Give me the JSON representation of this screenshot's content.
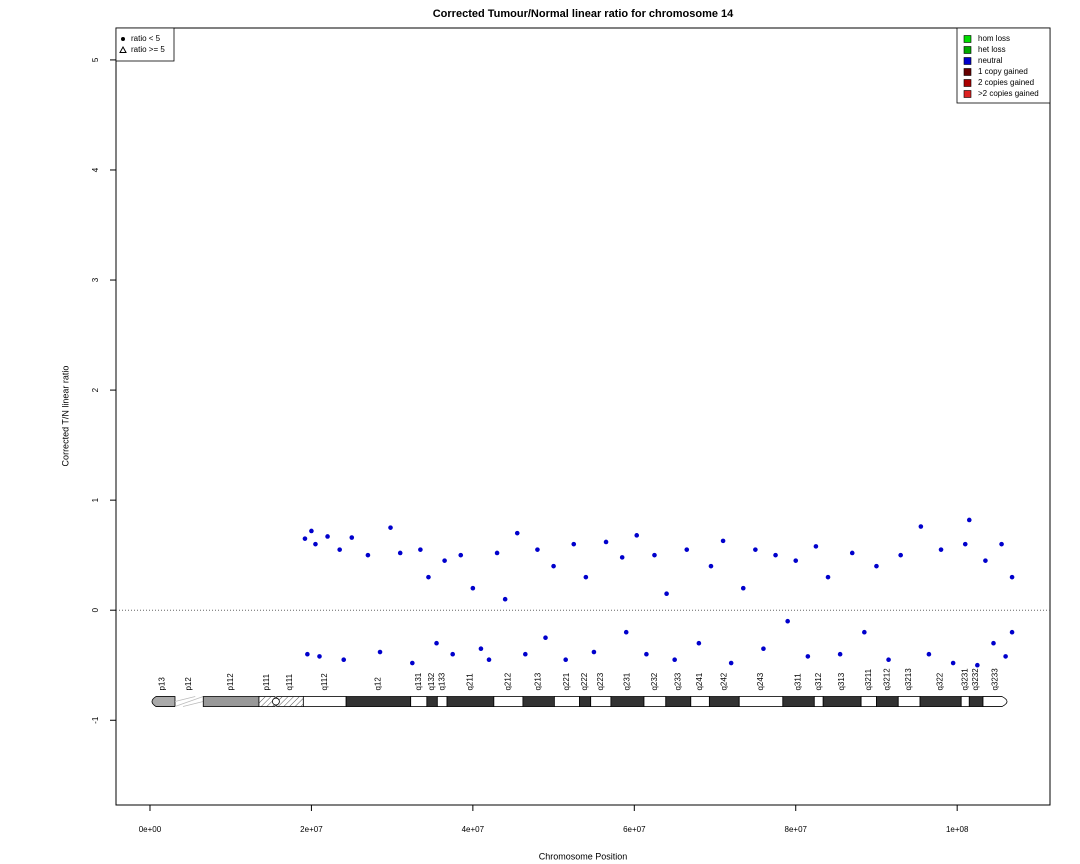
{
  "chart_data": {
    "type": "scatter",
    "title": "Corrected Tumour/Normal linear ratio for chromosome  14",
    "x_label": "Chromosome Position",
    "y_label": "Corrected T/N linear ratio",
    "xlim": [
      -4210000,
      111500000
    ],
    "ylim": [
      -1.77,
      5.29
    ],
    "xticks": [
      {
        "value": 0,
        "label": "0e+00"
      },
      {
        "value": 20000000,
        "label": "2e+07"
      },
      {
        "value": 40000000,
        "label": "4e+07"
      },
      {
        "value": 60000000,
        "label": "6e+07"
      },
      {
        "value": 80000000,
        "label": "8e+07"
      },
      {
        "value": 100000000,
        "label": "1e+08"
      }
    ],
    "yticks": [
      -1,
      0,
      1,
      2,
      3,
      4,
      5
    ],
    "reference_line": 0,
    "shape_legend": [
      "ratio < 5",
      "ratio >= 5"
    ],
    "legend": [
      {
        "name": "hom loss",
        "color": "#00dd00"
      },
      {
        "name": "het loss",
        "color": "#00aa00"
      },
      {
        "name": "neutral",
        "color": "#0000cc"
      },
      {
        "name": "1 copy gained",
        "color": "#660000"
      },
      {
        "name": "2 copies gained",
        "color": "#aa0000"
      },
      {
        "name": ">2 copies gained",
        "color": "#dd2222"
      }
    ],
    "series": [
      {
        "name": "neutral",
        "color": "#0000cc",
        "x": [
          19200000,
          19500000,
          20000000,
          20500000,
          21000000,
          22000000,
          23500000,
          24000000,
          25000000,
          27000000,
          28500000,
          29800000,
          31000000,
          32500000,
          33500000,
          34500000,
          35500000,
          36500000,
          37500000,
          38500000,
          40000000,
          41000000,
          42000000,
          43000000,
          44000000,
          45500000,
          46500000,
          48000000,
          49000000,
          50000000,
          51500000,
          52500000,
          54000000,
          55000000,
          56500000,
          58500000,
          59000000,
          60300000,
          61500000,
          62500000,
          64000000,
          65000000,
          66500000,
          68000000,
          69500000,
          71000000,
          72000000,
          73500000,
          75000000,
          76000000,
          77500000,
          79000000,
          80000000,
          81500000,
          82500000,
          84000000,
          85500000,
          87000000,
          88500000,
          90000000,
          91500000,
          93000000,
          95500000,
          96500000,
          98000000,
          99500000,
          101000000,
          101500000,
          102500000,
          103500000,
          104500000,
          105500000,
          106000000,
          106800000,
          106800000
        ],
        "values": [
          0.65,
          -0.4,
          0.72,
          0.6,
          -0.42,
          0.67,
          0.55,
          -0.45,
          0.66,
          0.5,
          -0.38,
          0.75,
          0.52,
          -0.48,
          0.55,
          0.3,
          -0.3,
          0.45,
          -0.4,
          0.5,
          0.2,
          -0.35,
          -0.45,
          0.52,
          0.1,
          0.7,
          -0.4,
          0.55,
          -0.25,
          0.4,
          -0.45,
          0.6,
          0.3,
          -0.38,
          0.62,
          0.48,
          -0.2,
          0.68,
          -0.4,
          0.5,
          0.15,
          -0.45,
          0.55,
          -0.3,
          0.4,
          0.63,
          -0.48,
          0.2,
          0.55,
          -0.35,
          0.5,
          -0.1,
          0.45,
          -0.42,
          0.58,
          0.3,
          -0.4,
          0.52,
          -0.2,
          0.4,
          -0.45,
          0.5,
          0.76,
          -0.4,
          0.55,
          -0.48,
          0.6,
          0.82,
          -0.5,
          0.45,
          -0.3,
          0.6,
          -0.42,
          0.3,
          -0.2
        ]
      }
    ],
    "ideogram": {
      "y": -0.83,
      "bands": [
        {
          "name": "p13",
          "start": 0,
          "end": 3100000,
          "stain": "gvar"
        },
        {
          "name": "p12",
          "start": 3100000,
          "end": 6600000,
          "stain": "stalk"
        },
        {
          "name": "p112",
          "start": 6600000,
          "end": 13500000,
          "stain": "gpos50"
        },
        {
          "name": "p111",
          "start": 13500000,
          "end": 15500000,
          "stain": "acen"
        },
        {
          "name": "q111",
          "start": 15700000,
          "end": 19000000,
          "stain": "acen"
        },
        {
          "name": "q112",
          "start": 19000000,
          "end": 24300000,
          "stain": "gneg"
        },
        {
          "name": "q12",
          "start": 24300000,
          "end": 32300000,
          "stain": "gpos100"
        },
        {
          "name": "q131",
          "start": 32300000,
          "end": 34300000,
          "stain": "gneg"
        },
        {
          "name": "q132",
          "start": 34300000,
          "end": 35600000,
          "stain": "gpos100"
        },
        {
          "name": "q133",
          "start": 35600000,
          "end": 36800000,
          "stain": "gneg"
        },
        {
          "name": "q211",
          "start": 36800000,
          "end": 42600000,
          "stain": "gpos100"
        },
        {
          "name": "q212",
          "start": 42600000,
          "end": 46200000,
          "stain": "gneg"
        },
        {
          "name": "q213",
          "start": 46200000,
          "end": 50100000,
          "stain": "gpos100"
        },
        {
          "name": "q221",
          "start": 50100000,
          "end": 53200000,
          "stain": "gneg"
        },
        {
          "name": "q222",
          "start": 53200000,
          "end": 54600000,
          "stain": "gpos100"
        },
        {
          "name": "q223",
          "start": 54600000,
          "end": 57100000,
          "stain": "gneg"
        },
        {
          "name": "q231",
          "start": 57100000,
          "end": 61200000,
          "stain": "gpos100"
        },
        {
          "name": "q232",
          "start": 61200000,
          "end": 63900000,
          "stain": "gneg"
        },
        {
          "name": "q233",
          "start": 63900000,
          "end": 67000000,
          "stain": "gpos100"
        },
        {
          "name": "q241",
          "start": 67000000,
          "end": 69300000,
          "stain": "gneg"
        },
        {
          "name": "q242",
          "start": 69300000,
          "end": 73000000,
          "stain": "gpos100"
        },
        {
          "name": "q243",
          "start": 73000000,
          "end": 78400000,
          "stain": "gneg"
        },
        {
          "name": "q311",
          "start": 78400000,
          "end": 82300000,
          "stain": "gpos100"
        },
        {
          "name": "q312",
          "start": 82300000,
          "end": 83400000,
          "stain": "gneg"
        },
        {
          "name": "q313",
          "start": 83400000,
          "end": 88100000,
          "stain": "gpos100"
        },
        {
          "name": "q3211",
          "start": 88100000,
          "end": 90000000,
          "stain": "gneg"
        },
        {
          "name": "q3212",
          "start": 90000000,
          "end": 92700000,
          "stain": "gpos100"
        },
        {
          "name": "q3213",
          "start": 92700000,
          "end": 95400000,
          "stain": "gneg"
        },
        {
          "name": "q322",
          "start": 95400000,
          "end": 100500000,
          "stain": "gpos100"
        },
        {
          "name": "q3231",
          "start": 100500000,
          "end": 101500000,
          "stain": "gneg"
        },
        {
          "name": "q3232",
          "start": 101500000,
          "end": 103200000,
          "stain": "gpos100"
        },
        {
          "name": "q3233",
          "start": 103200000,
          "end": 106300000,
          "stain": "gneg"
        }
      ]
    }
  }
}
